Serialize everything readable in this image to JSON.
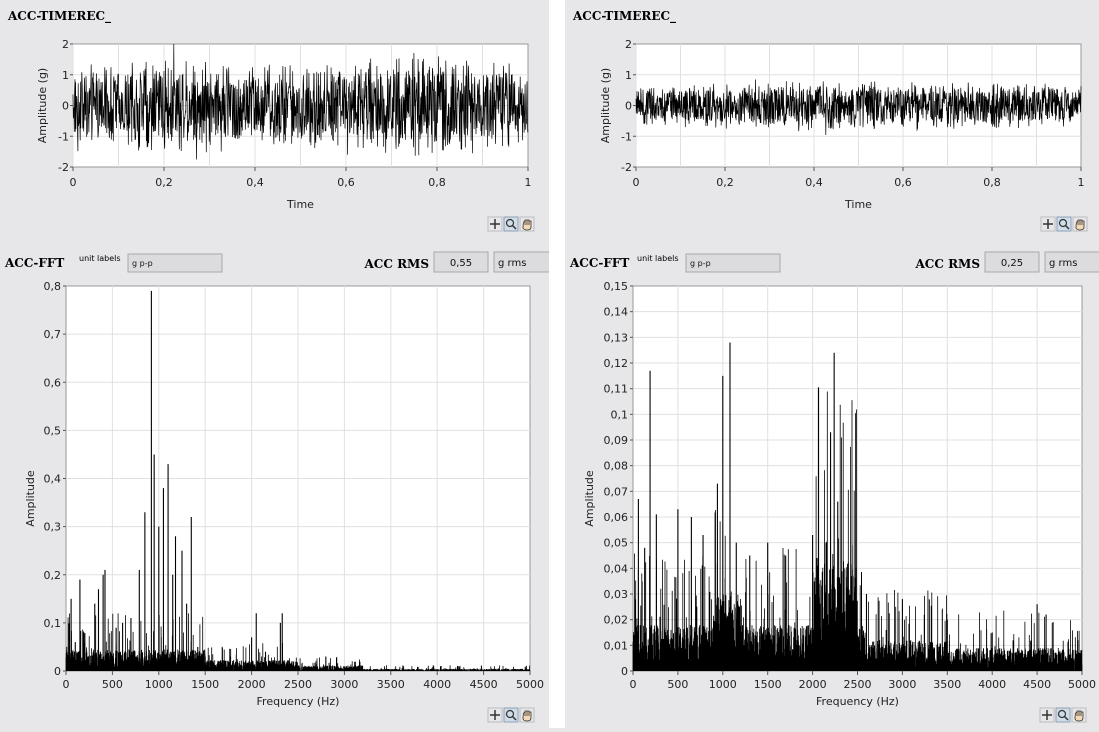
{
  "panels": [
    {
      "time_graph": {
        "title": "ACC-TIMEREC_",
        "ylabel": "Amplitude (g)",
        "xlabel": "Time",
        "yticks": [
          "2",
          "1",
          "0",
          "-1",
          "-2"
        ],
        "xticks": [
          "0",
          "0,2",
          "0,4",
          "0,6",
          "0,8",
          "1"
        ]
      },
      "fft_header": {
        "title": "ACC-FFT",
        "unit_caption": "unit labels",
        "unit_value": "g p-p",
        "rms_label": "ACC RMS",
        "rms_value": "0,55",
        "rms_unit": "g rms"
      },
      "fft_graph": {
        "ylabel": "Amplitude",
        "xlabel": "Frequency (Hz)",
        "yticks": [
          "0,8",
          "0,7",
          "0,6",
          "0,5",
          "0,4",
          "0,3",
          "0,2",
          "0,1",
          "0"
        ],
        "xticks": [
          "0",
          "500",
          "1000",
          "1500",
          "2000",
          "2500",
          "3000",
          "3500",
          "4000",
          "4500",
          "5000"
        ]
      },
      "chart_data": [
        {
          "type": "line",
          "title": "ACC-TIMEREC_",
          "xlabel": "Time",
          "ylabel": "Amplitude (g)",
          "xlim": [
            0,
            1
          ],
          "ylim": [
            -2,
            2
          ],
          "grid": true,
          "envelope": {
            "x": [
              0,
              0.2,
              0.4,
              0.6,
              0.8,
              1.0
            ],
            "amplitude": [
              1.3,
              1.7,
              1.5,
              1.6,
              1.8,
              1.4
            ]
          }
        },
        {
          "type": "line",
          "title": "ACC-FFT",
          "xlabel": "Frequency (Hz)",
          "ylabel": "Amplitude",
          "xlim": [
            0,
            5000
          ],
          "ylim": [
            0,
            0.8
          ],
          "grid": true,
          "peaks": [
            [
              55,
              0.15
            ],
            [
              100,
              0.06
            ],
            [
              150,
              0.19
            ],
            [
              200,
              0.06
            ],
            [
              310,
              0.14
            ],
            [
              350,
              0.17
            ],
            [
              400,
              0.2
            ],
            [
              420,
              0.21
            ],
            [
              540,
              0.09
            ],
            [
              610,
              0.1
            ],
            [
              700,
              0.11
            ],
            [
              790,
              0.21
            ],
            [
              850,
              0.33
            ],
            [
              920,
              0.79
            ],
            [
              950,
              0.45
            ],
            [
              1000,
              0.3
            ],
            [
              1050,
              0.38
            ],
            [
              1100,
              0.43
            ],
            [
              1150,
              0.2
            ],
            [
              1180,
              0.28
            ],
            [
              1250,
              0.25
            ],
            [
              1300,
              0.14
            ],
            [
              1350,
              0.32
            ],
            [
              1420,
              0.05
            ],
            [
              1500,
              0.03
            ],
            [
              2000,
              0.07
            ],
            [
              2050,
              0.12
            ],
            [
              2150,
              0.04
            ],
            [
              2310,
              0.1
            ],
            [
              2330,
              0.12
            ],
            [
              2800,
              0.03
            ]
          ]
        }
      ]
    },
    {
      "time_graph": {
        "title": "ACC-TIMEREC_",
        "ylabel": "Amplitude (g)",
        "xlabel": "Time",
        "yticks": [
          "2",
          "1",
          "0",
          "-1",
          "-2"
        ],
        "xticks": [
          "0",
          "0,2",
          "0,4",
          "0,6",
          "0,8",
          "1"
        ]
      },
      "fft_header": {
        "title": "ACC-FFT",
        "unit_caption": "unit labels",
        "unit_value": "g p-p",
        "rms_label": "ACC RMS",
        "rms_value": "0,25",
        "rms_unit": "g rms"
      },
      "fft_graph": {
        "ylabel": "Amplitude",
        "xlabel": "Frequency (Hz)",
        "yticks": [
          "0,15",
          "0,14",
          "0,13",
          "0,12",
          "0,11",
          "0,1",
          "0,09",
          "0,08",
          "0,07",
          "0,06",
          "0,05",
          "0,04",
          "0,03",
          "0,02",
          "0,01",
          "0"
        ],
        "xticks": [
          "0",
          "500",
          "1000",
          "1500",
          "2000",
          "2500",
          "3000",
          "3500",
          "4000",
          "4500",
          "5000"
        ]
      },
      "chart_data": [
        {
          "type": "line",
          "title": "ACC-TIMEREC_",
          "xlabel": "Time",
          "ylabel": "Amplitude (g)",
          "xlim": [
            0,
            1
          ],
          "ylim": [
            -2,
            2
          ],
          "grid": true,
          "envelope": {
            "x": [
              0,
              0.2,
              0.4,
              0.6,
              0.8,
              1.0
            ],
            "amplitude": [
              0.7,
              0.8,
              0.9,
              0.8,
              0.8,
              0.7
            ]
          }
        },
        {
          "type": "line",
          "title": "ACC-FFT",
          "xlabel": "Frequency (Hz)",
          "ylabel": "Amplitude",
          "xlim": [
            0,
            5000
          ],
          "ylim": [
            0,
            0.15
          ],
          "grid": true,
          "peaks": [
            [
              60,
              0.067
            ],
            [
              130,
              0.048
            ],
            [
              190,
              0.117
            ],
            [
              260,
              0.061
            ],
            [
              500,
              0.063
            ],
            [
              650,
              0.06
            ],
            [
              780,
              0.053
            ],
            [
              940,
              0.073
            ],
            [
              1000,
              0.115
            ],
            [
              1080,
              0.128
            ],
            [
              1150,
              0.05
            ],
            [
              1300,
              0.045
            ],
            [
              1500,
              0.05
            ],
            [
              1700,
              0.045
            ],
            [
              2000,
              0.053
            ],
            [
              2050,
              0.044
            ],
            [
              2150,
              0.05
            ],
            [
              2200,
              0.093
            ],
            [
              2240,
              0.124
            ],
            [
              2280,
              0.066
            ],
            [
              2350,
              0.04
            ],
            [
              2600,
              0.03
            ],
            [
              3000,
              0.028
            ],
            [
              3500,
              0.02
            ],
            [
              4000,
              0.015
            ],
            [
              4500,
              0.026
            ],
            [
              4600,
              0.022
            ]
          ]
        }
      ]
    }
  ]
}
